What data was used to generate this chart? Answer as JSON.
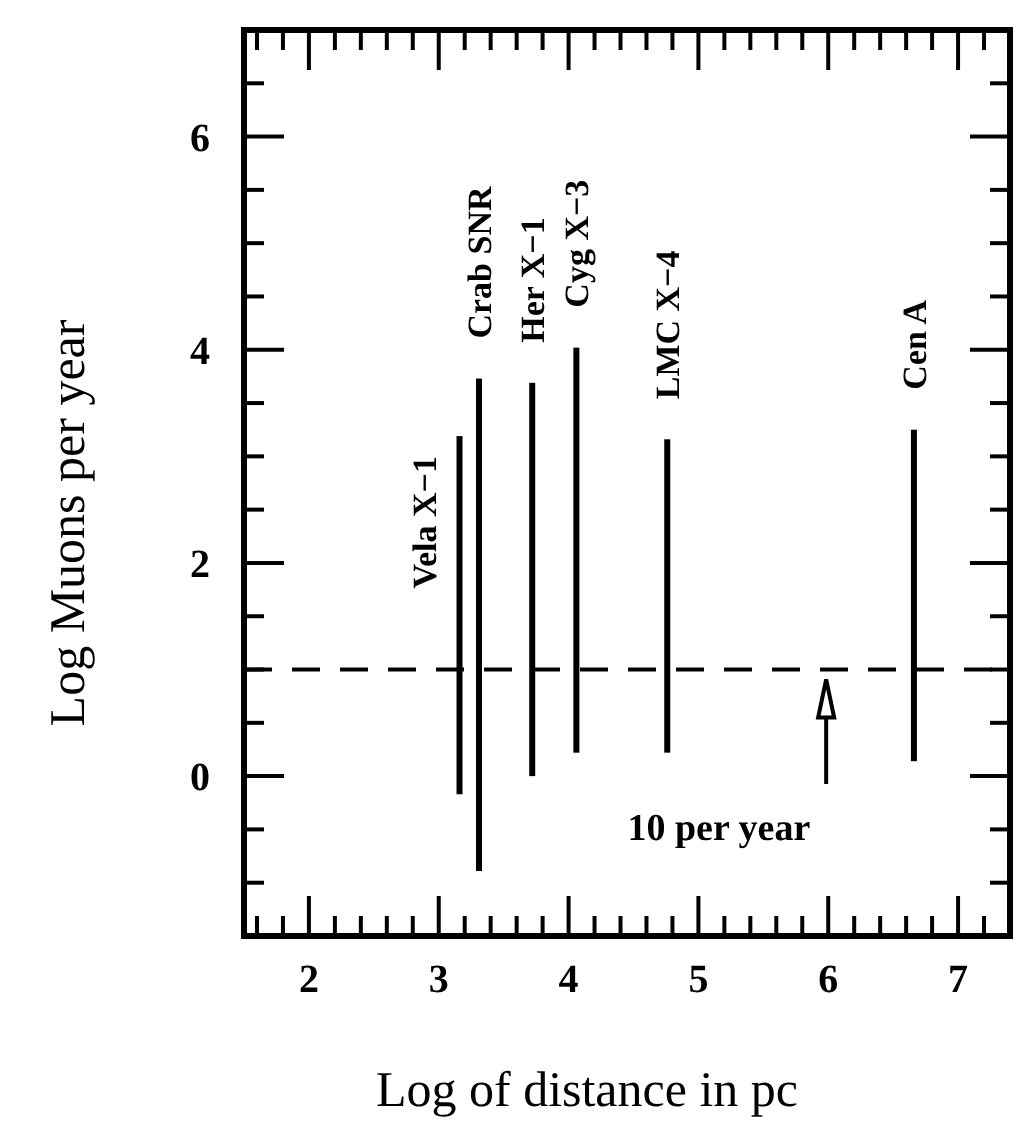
{
  "chart_data": {
    "type": "bar",
    "xlabel": "Log of distance in pc",
    "ylabel": "Log Muons per year",
    "x": [
      3.16,
      3.31,
      3.72,
      4.06,
      4.76,
      6.66
    ],
    "base": [
      -0.17,
      -0.89,
      0,
      0.22,
      0.22,
      0.14
    ],
    "values": [
      3.36,
      4.62,
      3.69,
      3.8,
      2.94,
      3.11
    ],
    "color": "#000000",
    "xlim": [
      1.5,
      7.4
    ],
    "xticks": [
      {
        "value": 1.6,
        "label": null
      },
      {
        "value": 1.8,
        "label": null
      },
      2,
      {
        "value": 2.2,
        "label": null
      },
      {
        "value": 2.4,
        "label": null
      },
      {
        "value": 2.6,
        "label": null
      },
      {
        "value": 2.8,
        "label": null
      },
      3,
      {
        "value": 3.2,
        "label": null
      },
      {
        "value": 3.4,
        "label": null
      },
      {
        "value": 3.6,
        "label": null
      },
      {
        "value": 3.8,
        "label": null
      },
      4,
      {
        "value": 4.2,
        "label": null
      },
      {
        "value": 4.4,
        "label": null
      },
      {
        "value": 4.6,
        "label": null
      },
      {
        "value": 4.8,
        "label": null
      },
      5,
      {
        "value": 5.2,
        "label": null
      },
      {
        "value": 5.4,
        "label": null
      },
      {
        "value": 5.6,
        "label": null
      },
      {
        "value": 5.8,
        "label": null
      },
      6,
      {
        "value": 6.2,
        "label": null
      },
      {
        "value": 6.4,
        "label": null
      },
      {
        "value": 6.6,
        "label": null
      },
      {
        "value": 6.8,
        "label": null
      },
      7,
      {
        "value": 7.2,
        "label": null
      }
    ],
    "ylim": [
      -1.5,
      7
    ],
    "yticks": [
      {
        "value": -1,
        "label": null
      },
      {
        "value": -0.5,
        "label": null
      },
      0,
      {
        "value": 0.5,
        "label": null
      },
      {
        "value": 1,
        "label": null
      },
      {
        "value": 1.5,
        "label": null
      },
      2,
      {
        "value": 2.5,
        "label": null
      },
      {
        "value": 3,
        "label": null
      },
      {
        "value": 3.5,
        "label": null
      },
      4,
      {
        "value": 4.5,
        "label": null
      },
      {
        "value": 5,
        "label": null
      },
      {
        "value": 5.5,
        "label": null
      },
      6,
      {
        "value": 6.5,
        "label": null
      }
    ],
    "ref_lines": [
      {
        "axis": "y",
        "value": 1,
        "line_style": "dashed",
        "color": "#000000"
      }
    ],
    "annotations": [
      {
        "text": "Vela X−1",
        "x": 3.16,
        "y": 3.19
      },
      {
        "text": "Crab SNR",
        "x": 3.31,
        "y": 3.73
      },
      {
        "text": "Her X−1",
        "x": 3.72,
        "y": 3.69
      },
      {
        "text": "Cyg X−3",
        "x": 4.06,
        "y": 4.02
      },
      {
        "text": "LMC X−4",
        "x": 4.76,
        "y": 3.16
      },
      {
        "text": "Cen A",
        "x": 6.66,
        "y": 3.25
      },
      "10 per year"
    ],
    "grid": false
  }
}
